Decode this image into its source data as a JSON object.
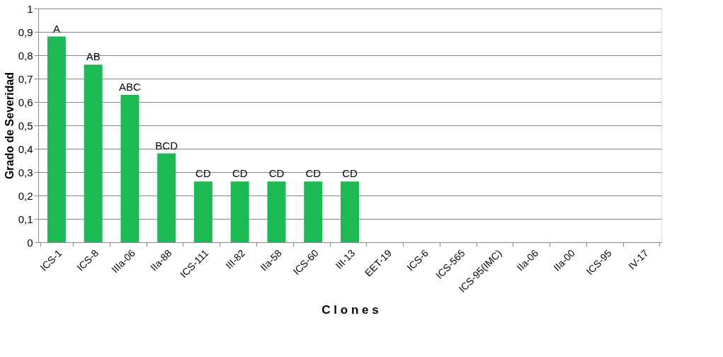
{
  "chart_data": {
    "type": "bar",
    "xlabel": "C l o n e s",
    "ylabel": "Grado de Severidad",
    "categories": [
      "ICS-1",
      "ICS-8",
      "IIIa-06",
      "IIa-88",
      "ICS-111",
      "III-82",
      "IIa-58",
      "ICS-60",
      "III-13",
      "EET-19",
      "ICS-6",
      "ICS-565",
      "ICS-95(IMC)",
      "IIa-06",
      "IIa-00",
      "ICS-95",
      "IV-17"
    ],
    "values": [
      0.88,
      0.76,
      0.63,
      0.38,
      0.26,
      0.26,
      0.26,
      0.26,
      0.26,
      0,
      0,
      0,
      0,
      0,
      0,
      0,
      0
    ],
    "color": "#1db954",
    "ylim": [
      0,
      1
    ],
    "yticks": [
      {
        "value": 0,
        "label": "0"
      },
      {
        "value": 0.1,
        "label": "0,1"
      },
      {
        "value": 0.2,
        "label": "0,2"
      },
      {
        "value": 0.3,
        "label": "0,3"
      },
      {
        "value": 0.4,
        "label": "0,4"
      },
      {
        "value": 0.5,
        "label": "0,5"
      },
      {
        "value": 0.6,
        "label": "0,6"
      },
      {
        "value": 0.7,
        "label": "0,7"
      },
      {
        "value": 0.8,
        "label": "0,8"
      },
      {
        "value": 0.9,
        "label": "0,9"
      },
      {
        "value": 1,
        "label": "1"
      }
    ],
    "grid": "y",
    "annotations": [
      {
        "text": "A",
        "x": "ICS-1",
        "y": 0.88
      },
      {
        "text": "AB",
        "x": "ICS-8",
        "y": 0.76
      },
      {
        "text": "ABC",
        "x": "IIIa-06",
        "y": 0.63
      },
      {
        "text": "BCD",
        "x": "IIa-88",
        "y": 0.38
      },
      {
        "text": "CD",
        "x": "ICS-111",
        "y": 0.26
      },
      {
        "text": "CD",
        "x": "III-82",
        "y": 0.26
      },
      {
        "text": "CD",
        "x": "IIa-58",
        "y": 0.26
      },
      {
        "text": "CD",
        "x": "ICS-60",
        "y": 0.26
      },
      {
        "text": "CD",
        "x": "III-13",
        "y": 0.26
      }
    ]
  }
}
